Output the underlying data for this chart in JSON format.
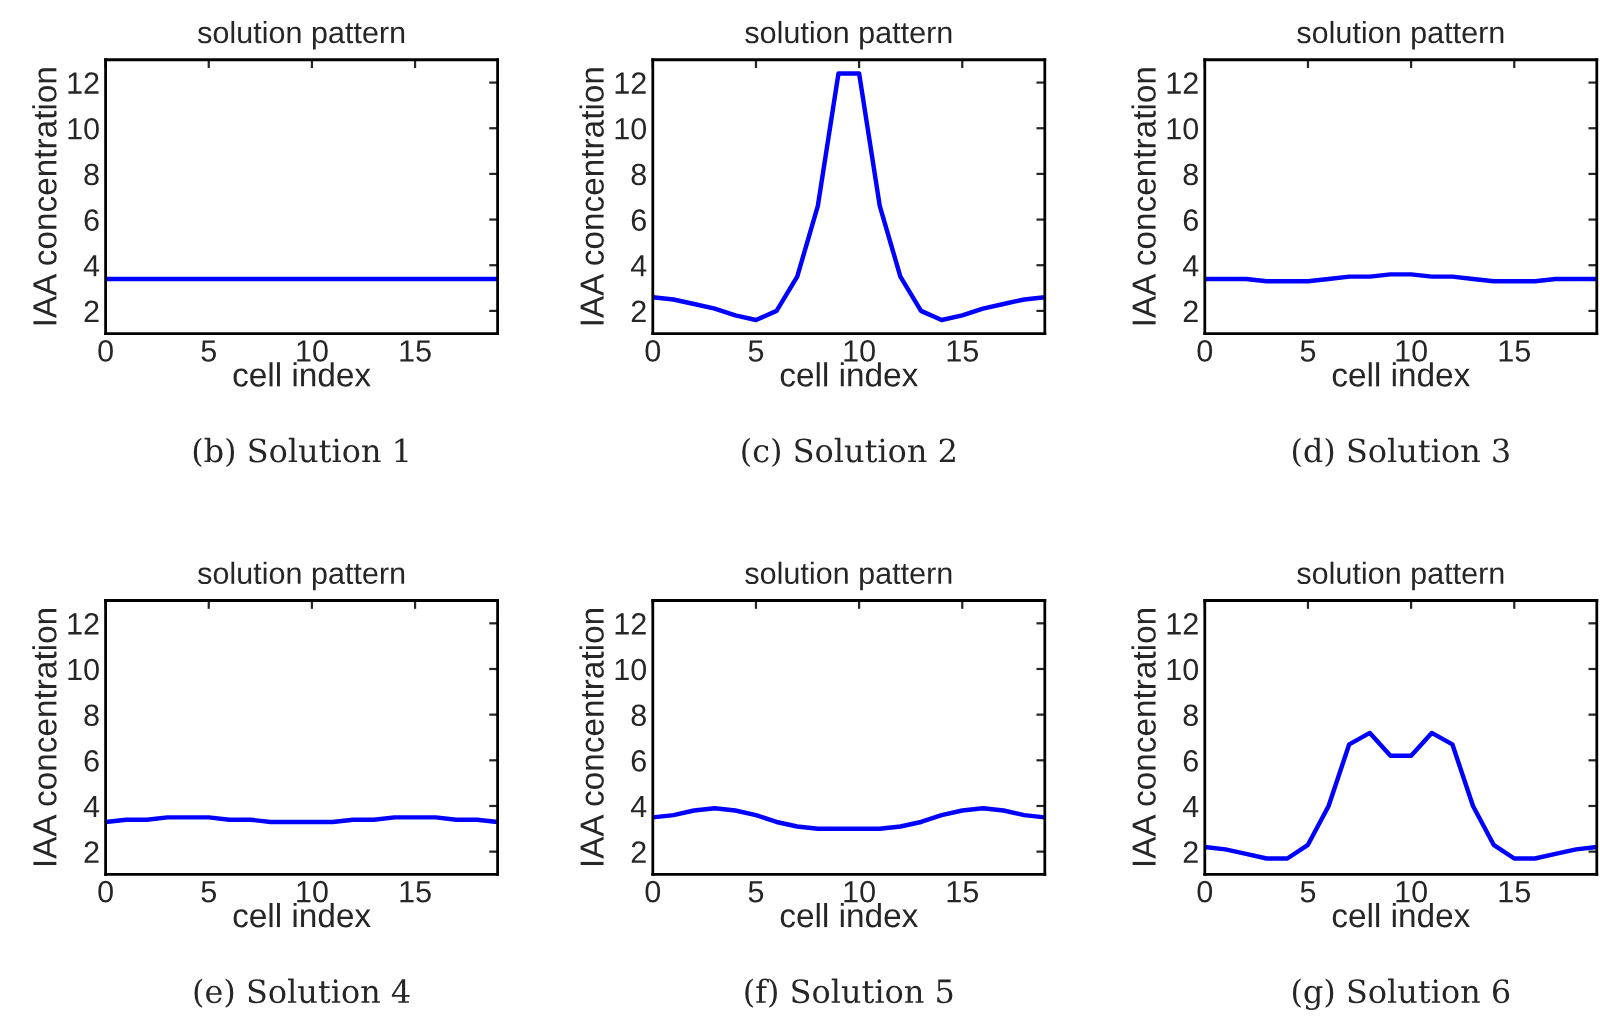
{
  "chart_data": [
    {
      "type": "line",
      "title": "solution pattern",
      "xlabel": "cell index",
      "ylabel": "IAA concentration",
      "annotations": [
        "(b) Solution 1"
      ],
      "x": [
        0,
        1,
        2,
        3,
        4,
        5,
        6,
        7,
        8,
        9,
        10,
        11,
        12,
        13,
        14,
        15,
        16,
        17,
        18,
        19
      ],
      "xlim": [
        0,
        19
      ],
      "xticks": [
        0,
        5,
        10,
        15
      ],
      "ylim": [
        1,
        13
      ],
      "yticks": [
        2,
        4,
        6,
        8,
        10,
        12
      ],
      "series": [
        {
          "color": "#0000ff",
          "values": [
            3.4,
            3.4,
            3.4,
            3.4,
            3.4,
            3.4,
            3.4,
            3.4,
            3.4,
            3.4,
            3.4,
            3.4,
            3.4,
            3.4,
            3.4,
            3.4,
            3.4,
            3.4,
            3.4,
            3.4
          ]
        }
      ]
    },
    {
      "type": "line",
      "title": "solution pattern",
      "xlabel": "cell index",
      "ylabel": "IAA concentration",
      "annotations": [
        "(c) Solution 2"
      ],
      "x": [
        0,
        1,
        2,
        3,
        4,
        5,
        6,
        7,
        8,
        9,
        10,
        11,
        12,
        13,
        14,
        15,
        16,
        17,
        18,
        19
      ],
      "xlim": [
        0,
        19
      ],
      "xticks": [
        0,
        5,
        10,
        15
      ],
      "ylim": [
        1,
        13
      ],
      "yticks": [
        2,
        4,
        6,
        8,
        10,
        12
      ],
      "series": [
        {
          "color": "#0000ff",
          "values": [
            2.6,
            2.5,
            2.3,
            2.1,
            1.8,
            1.6,
            2.0,
            3.5,
            6.6,
            12.4,
            12.4,
            6.6,
            3.5,
            2.0,
            1.6,
            1.8,
            2.1,
            2.3,
            2.5,
            2.6
          ]
        }
      ]
    },
    {
      "type": "line",
      "title": "solution pattern",
      "xlabel": "cell index",
      "ylabel": "IAA concentration",
      "annotations": [
        "(d) Solution 3"
      ],
      "x": [
        0,
        1,
        2,
        3,
        4,
        5,
        6,
        7,
        8,
        9,
        10,
        11,
        12,
        13,
        14,
        15,
        16,
        17,
        18,
        19
      ],
      "xlim": [
        0,
        19
      ],
      "xticks": [
        0,
        5,
        10,
        15
      ],
      "ylim": [
        1,
        13
      ],
      "yticks": [
        2,
        4,
        6,
        8,
        10,
        12
      ],
      "series": [
        {
          "color": "#0000ff",
          "values": [
            3.4,
            3.4,
            3.4,
            3.3,
            3.3,
            3.3,
            3.4,
            3.5,
            3.5,
            3.6,
            3.6,
            3.5,
            3.5,
            3.4,
            3.3,
            3.3,
            3.3,
            3.4,
            3.4,
            3.4
          ]
        }
      ]
    },
    {
      "type": "line",
      "title": "solution pattern",
      "xlabel": "cell index",
      "ylabel": "IAA concentration",
      "annotations": [
        "(e) Solution 4"
      ],
      "x": [
        0,
        1,
        2,
        3,
        4,
        5,
        6,
        7,
        8,
        9,
        10,
        11,
        12,
        13,
        14,
        15,
        16,
        17,
        18,
        19
      ],
      "xlim": [
        0,
        19
      ],
      "xticks": [
        0,
        5,
        10,
        15
      ],
      "ylim": [
        1,
        13
      ],
      "yticks": [
        2,
        4,
        6,
        8,
        10,
        12
      ],
      "series": [
        {
          "color": "#0000ff",
          "values": [
            3.3,
            3.4,
            3.4,
            3.5,
            3.5,
            3.5,
            3.4,
            3.4,
            3.3,
            3.3,
            3.3,
            3.3,
            3.4,
            3.4,
            3.5,
            3.5,
            3.5,
            3.4,
            3.4,
            3.3
          ]
        }
      ]
    },
    {
      "type": "line",
      "title": "solution pattern",
      "xlabel": "cell index",
      "ylabel": "IAA concentration",
      "annotations": [
        "(f) Solution 5"
      ],
      "x": [
        0,
        1,
        2,
        3,
        4,
        5,
        6,
        7,
        8,
        9,
        10,
        11,
        12,
        13,
        14,
        15,
        16,
        17,
        18,
        19
      ],
      "xlim": [
        0,
        19
      ],
      "xticks": [
        0,
        5,
        10,
        15
      ],
      "ylim": [
        1,
        13
      ],
      "yticks": [
        2,
        4,
        6,
        8,
        10,
        12
      ],
      "series": [
        {
          "color": "#0000ff",
          "values": [
            3.5,
            3.6,
            3.8,
            3.9,
            3.8,
            3.6,
            3.3,
            3.1,
            3.0,
            3.0,
            3.0,
            3.0,
            3.1,
            3.3,
            3.6,
            3.8,
            3.9,
            3.8,
            3.6,
            3.5
          ]
        }
      ]
    },
    {
      "type": "line",
      "title": "solution pattern",
      "xlabel": "cell index",
      "ylabel": "IAA concentration",
      "annotations": [
        "(g) Solution 6"
      ],
      "x": [
        0,
        1,
        2,
        3,
        4,
        5,
        6,
        7,
        8,
        9,
        10,
        11,
        12,
        13,
        14,
        15,
        16,
        17,
        18,
        19
      ],
      "xlim": [
        0,
        19
      ],
      "xticks": [
        0,
        5,
        10,
        15
      ],
      "ylim": [
        1,
        13
      ],
      "yticks": [
        2,
        4,
        6,
        8,
        10,
        12
      ],
      "series": [
        {
          "color": "#0000ff",
          "values": [
            2.2,
            2.1,
            1.9,
            1.7,
            1.7,
            2.3,
            4.0,
            6.7,
            7.2,
            6.2,
            6.2,
            7.2,
            6.7,
            4.0,
            2.3,
            1.7,
            1.7,
            1.9,
            2.1,
            2.2
          ]
        }
      ]
    }
  ]
}
